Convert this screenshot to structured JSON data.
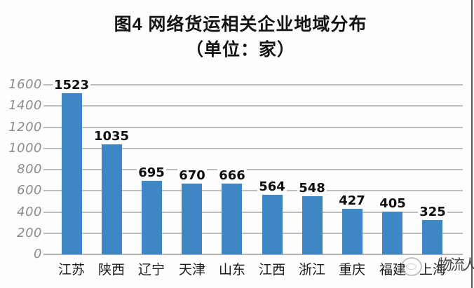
{
  "chart_data": {
    "type": "bar",
    "title": "图4 网络货运相关企业地域分布",
    "subtitle": "（单位：家）",
    "categories": [
      "江苏",
      "陕西",
      "辽宁",
      "天津",
      "山东",
      "江西",
      "浙江",
      "重庆",
      "福建",
      "上海"
    ],
    "values": [
      1523,
      1035,
      695,
      670,
      666,
      564,
      548,
      427,
      405,
      325
    ],
    "xlabel": "",
    "ylabel": "",
    "ylim": [
      0,
      1600
    ],
    "ytick_step": 200,
    "yticks": [
      "0",
      "200",
      "400",
      "600",
      "800",
      "1000",
      "1200",
      "1400",
      "1600"
    ],
    "grid": true,
    "legend": false,
    "value_labels_shown": true,
    "bar_color": "#3e86c4",
    "gridline_color": "#bdbdbd",
    "axis_tick_color": "#8c8c8c",
    "value_label_color": "#0e0e0e",
    "category_label_color": "#1a1a1a"
  },
  "watermark": {
    "icon": "circle-logo",
    "text": "物流人"
  }
}
